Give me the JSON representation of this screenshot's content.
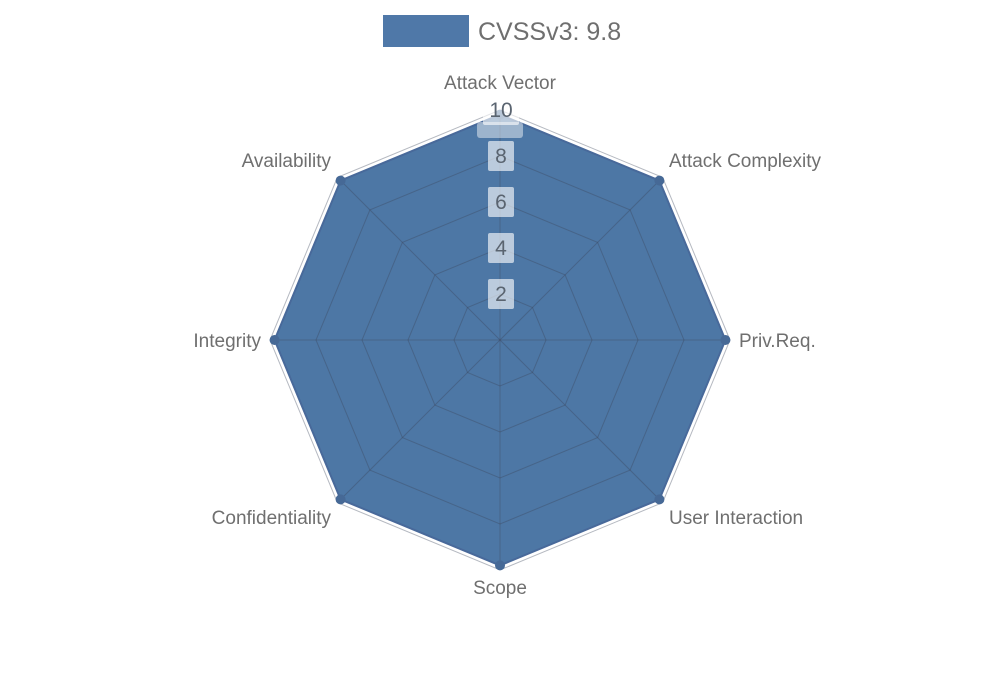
{
  "legend": {
    "label": "CVSSv3: 9.8"
  },
  "chart_data": {
    "type": "radar",
    "categories": [
      "Attack Vector",
      "Attack Complexity",
      "Priv.Req.",
      "User Interaction",
      "Scope",
      "Confidentiality",
      "Integrity",
      "Availability"
    ],
    "series": [
      {
        "name": "CVSSv3: 9.8",
        "values": [
          9.8,
          9.8,
          9.8,
          9.8,
          9.8,
          9.8,
          9.8,
          9.8
        ]
      }
    ],
    "ticks": [
      2,
      4,
      6,
      8,
      10
    ],
    "min": 0,
    "max": 10,
    "grid_shape": "polygon",
    "grid": "on",
    "legend_position": "top-center"
  },
  "colors": {
    "series_fill": "#4d77a5",
    "series_stroke": "#48699a",
    "point": "#466996",
    "grid_line": "rgba(60,72,92,0.38)",
    "axis_label": "#6f6f6f",
    "tick_label": "#5a6470",
    "tick_label_bg": "rgba(255,255,255,0.62)",
    "value_band_bg": "rgba(255,255,255,0.45)",
    "legend_swatch": "#4f78a8",
    "legend_text": "#6f6f6f",
    "background": "#ffffff"
  }
}
